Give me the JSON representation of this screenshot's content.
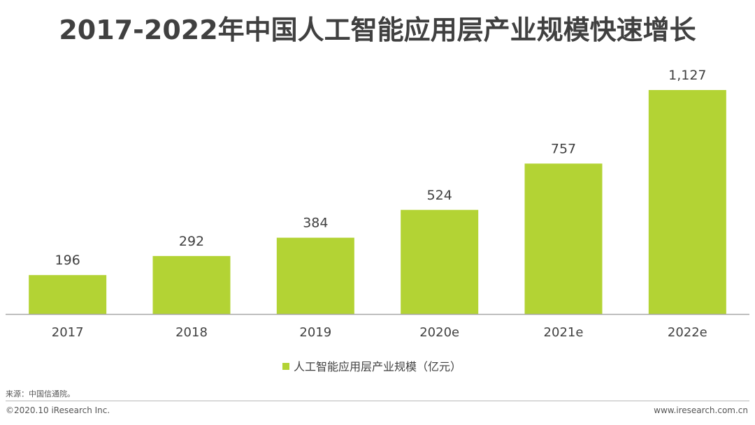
{
  "chart_data": {
    "type": "bar",
    "title": "2017-2022年中国人工智能应用层产业规模快速增长",
    "categories": [
      "2017",
      "2018",
      "2019",
      "2020e",
      "2021e",
      "2022e"
    ],
    "series": [
      {
        "name": "人工智能应用层产业规模（亿元）",
        "values": [
          196,
          292,
          384,
          524,
          757,
          1127
        ],
        "labels": [
          "196",
          "292",
          "384",
          "524",
          "757",
          "1,127"
        ]
      }
    ],
    "xlabel": "",
    "ylabel": "",
    "ylim": [
      0,
      1127
    ],
    "grid": false,
    "legend": "bottom",
    "color": "#b3d334"
  },
  "footer": {
    "source": "来源：中国信通院。",
    "copyright": "©2020.10 iResearch Inc.",
    "website": "www.iresearch.com.cn"
  }
}
